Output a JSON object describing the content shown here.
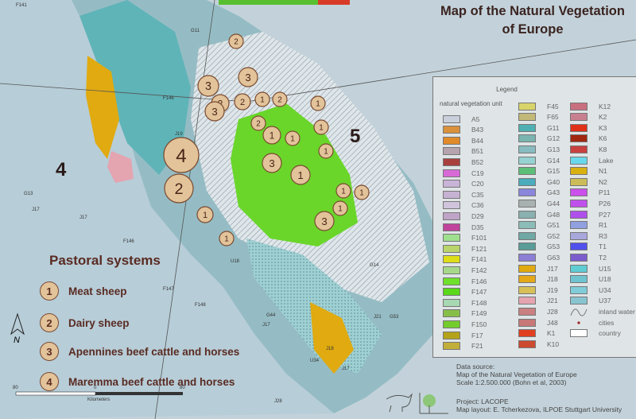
{
  "title": "Map of the Natural Vegetation of Europe",
  "legend": {
    "title": "Legend",
    "subtitle": "natural vegetation unit",
    "columns": [
      [
        [
          "A5",
          "#c9d0dc"
        ],
        [
          "B43",
          "#d9913b"
        ],
        [
          "B44",
          "#e08a2a"
        ],
        [
          "B51",
          "#b5a3ad"
        ],
        [
          "B52",
          "#a8403e"
        ],
        [
          "C19",
          "#d86ad8"
        ],
        [
          "C20",
          "#c8b4d6"
        ],
        [
          "C35",
          "#c6b2d2"
        ],
        [
          "C36",
          "#cfc4dc"
        ],
        [
          "D29",
          "#bfa4c8"
        ],
        [
          "D35",
          "#c0449c"
        ],
        [
          "F101",
          "#9fe08e"
        ],
        [
          "F121",
          "#b8d46a"
        ],
        [
          "F141",
          "#dede18"
        ],
        [
          "F142",
          "#a6d88a"
        ],
        [
          "F146",
          "#6fe02c"
        ],
        [
          "F147",
          "#5ad81a"
        ],
        [
          "F148",
          "#a8d8b2"
        ],
        [
          "F149",
          "#86bf48"
        ],
        [
          "F150",
          "#74cc2c"
        ],
        [
          "F17",
          "#b4a31a"
        ],
        [
          "F21",
          "#c2ae3a"
        ]
      ],
      [
        [
          "F45",
          "#d8d46a"
        ],
        [
          "F65",
          "#c2b878"
        ],
        [
          "G11",
          "#4fb0b4"
        ],
        [
          "G12",
          "#7ab4b0"
        ],
        [
          "G13",
          "#88bcc0"
        ],
        [
          "G14",
          "#96d2d2"
        ],
        [
          "G15",
          "#5cbf78"
        ],
        [
          "G40",
          "#4aacbc"
        ],
        [
          "G43",
          "#8a86dc"
        ],
        [
          "G44",
          "#a8b0b0"
        ],
        [
          "G48",
          "#8ab0b0"
        ],
        [
          "G51",
          "#8cbcb8"
        ],
        [
          "G52",
          "#70a8a6"
        ],
        [
          "G53",
          "#5a9c98"
        ],
        [
          "G63",
          "#8c7ed4"
        ],
        [
          "J17",
          "#e0aa10"
        ],
        [
          "J18",
          "#e4a818"
        ],
        [
          "J19",
          "#d8c058"
        ],
        [
          "J21",
          "#e4a4b0"
        ],
        [
          "J28",
          "#c88080"
        ],
        [
          "J48",
          "#c87878"
        ],
        [
          "K1",
          "#e04020"
        ],
        [
          "K10",
          "#cc4a30"
        ]
      ],
      [
        [
          "K12",
          "#c87080"
        ],
        [
          "K2",
          "#c88090"
        ],
        [
          "K3",
          "#e03018"
        ],
        [
          "K6",
          "#a02810"
        ],
        [
          "K8",
          "#c84040"
        ],
        [
          "Lake",
          "#6ad8ec"
        ],
        [
          "N1",
          "#d8b010"
        ],
        [
          "N2",
          "#ccbc58"
        ],
        [
          "P11",
          "#cc50ec"
        ],
        [
          "P26",
          "#c050ec"
        ],
        [
          "P27",
          "#b050ec"
        ],
        [
          "R1",
          "#90a0e0"
        ],
        [
          "R3",
          "#a8a8dc"
        ],
        [
          "T1",
          "#5050ec"
        ],
        [
          "T2",
          "#7c5ccc"
        ],
        [
          "U15",
          "#60ccd4"
        ],
        [
          "U18",
          "#70c4d0"
        ],
        [
          "U34",
          "#80ccd8"
        ],
        [
          "U37",
          "#88c4d0"
        ],
        [
          "inland water",
          ""
        ],
        [
          "cities",
          ""
        ],
        [
          "country",
          ""
        ]
      ]
    ]
  },
  "source": {
    "line1": "Data source:",
    "line2": "Map of the Natural Vegetation of Europe",
    "line3": "Scale 1:2.500.000 (Bohn et al, 2003)"
  },
  "project": {
    "line1": "Project: LACOPE",
    "line2": "Map layout: E. Tcherkezova, ILPOE Stuttgart University"
  },
  "pastoral": {
    "title": "Pastoral systems",
    "items": [
      {
        "n": "1",
        "label": "Meat sheep"
      },
      {
        "n": "2",
        "label": "Dairy sheep"
      },
      {
        "n": "3",
        "label": "Apennines beef cattle and horses"
      },
      {
        "n": "4",
        "label": "Maremma beef cattle and horses"
      }
    ]
  },
  "regions": [
    "4",
    "5"
  ],
  "markers": [
    "2",
    "3",
    "3",
    "2",
    "2",
    "1",
    "2",
    "1",
    "2",
    "1",
    "1",
    "1",
    "1",
    "3",
    "1",
    "4",
    "2",
    "1",
    "1",
    "1",
    "1",
    "3",
    "1",
    "3"
  ],
  "unit_labels": [
    "F141",
    "G11",
    "J17",
    "G13",
    "F146",
    "J19",
    "U18",
    "J17",
    "F147",
    "J18",
    "G44",
    "F148",
    "G14",
    "J17",
    "J21",
    "U34",
    "G53",
    "J17",
    "F146",
    "J28"
  ],
  "compass": "N",
  "scale": {
    "left": "80",
    "mid": "0",
    "right": "80",
    "unit": "Kilometers"
  }
}
